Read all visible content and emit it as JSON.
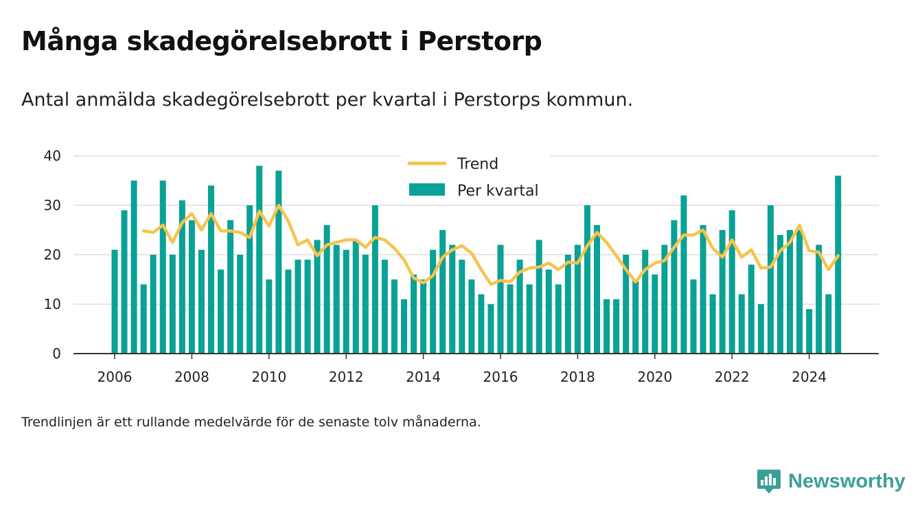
{
  "title": "Många skadegörelsebrott i Perstorp",
  "subtitle": "Antal anmälda skadegörelsebrott per kvartal i Perstorps kommun.",
  "footnote": "Trendlinjen är ett rullande medelvärde för de senaste tolv månaderna.",
  "brand": {
    "name": "Newsworthy",
    "logo_icon": "newsworthy-logo-icon"
  },
  "colors": {
    "bars": "#0aa196",
    "trend": "#f7c34c",
    "grid": "#dddddd",
    "axis": "#333333"
  },
  "chart_data": {
    "type": "bar",
    "grid": true,
    "legend_position": "top-center",
    "y_range": [
      0,
      40
    ],
    "y_ticks": [
      0,
      10,
      20,
      30,
      40
    ],
    "y_tick_labels": [
      "0",
      "10",
      "20",
      "30",
      "40"
    ],
    "x_range": [
      2005.75,
      2025.75
    ],
    "x_ticks": [
      2006,
      2008,
      2010,
      2012,
      2014,
      2016,
      2018,
      2020,
      2022,
      2024
    ],
    "x_tick_labels": [
      "2006",
      "2008",
      "2010",
      "2012",
      "2014",
      "2016",
      "2018",
      "2020",
      "2022",
      "2024"
    ],
    "series": [
      {
        "name": "Per kvartal",
        "kind": "bar",
        "x": [
          2006.0,
          2006.25,
          2006.5,
          2006.75,
          2007.0,
          2007.25,
          2007.5,
          2007.75,
          2008.0,
          2008.25,
          2008.5,
          2008.75,
          2009.0,
          2009.25,
          2009.5,
          2009.75,
          2010.0,
          2010.25,
          2010.5,
          2010.75,
          2011.0,
          2011.25,
          2011.5,
          2011.75,
          2012.0,
          2012.25,
          2012.5,
          2012.75,
          2013.0,
          2013.25,
          2013.5,
          2013.75,
          2014.0,
          2014.25,
          2014.5,
          2014.75,
          2015.0,
          2015.25,
          2015.5,
          2015.75,
          2016.0,
          2016.25,
          2016.5,
          2016.75,
          2017.0,
          2017.25,
          2017.5,
          2017.75,
          2018.0,
          2018.25,
          2018.5,
          2018.75,
          2019.0,
          2019.25,
          2019.5,
          2019.75,
          2020.0,
          2020.25,
          2020.5,
          2020.75,
          2021.0,
          2021.25,
          2021.5,
          2021.75,
          2022.0,
          2022.25,
          2022.5,
          2022.75,
          2023.0,
          2023.25,
          2023.5,
          2023.75,
          2024.0,
          2024.25,
          2024.5,
          2024.75
        ],
        "values": [
          21,
          29,
          35,
          14,
          20,
          35,
          20,
          31,
          27,
          21,
          34,
          17,
          27,
          20,
          30,
          38,
          15,
          37,
          17,
          19,
          19,
          23,
          26,
          22,
          21,
          23,
          20,
          30,
          19,
          15,
          11,
          16,
          15,
          21,
          25,
          22,
          19,
          15,
          12,
          10,
          22,
          14,
          19,
          14,
          23,
          17,
          14,
          20,
          22,
          30,
          26,
          11,
          11,
          20,
          15,
          21,
          16,
          22,
          27,
          32,
          15,
          26,
          12,
          25,
          29,
          12,
          18,
          10,
          30,
          24,
          25,
          25,
          9,
          22,
          12,
          36
        ]
      },
      {
        "name": "Trend",
        "kind": "line",
        "x": [
          2006.75,
          2007.0,
          2007.25,
          2007.5,
          2007.75,
          2008.0,
          2008.25,
          2008.5,
          2008.75,
          2009.0,
          2009.25,
          2009.5,
          2009.75,
          2010.0,
          2010.25,
          2010.5,
          2010.75,
          2011.0,
          2011.25,
          2011.5,
          2011.75,
          2012.0,
          2012.25,
          2012.5,
          2012.75,
          2013.0,
          2013.25,
          2013.5,
          2013.75,
          2014.0,
          2014.25,
          2014.5,
          2014.75,
          2015.0,
          2015.25,
          2015.5,
          2015.75,
          2016.0,
          2016.25,
          2016.5,
          2016.75,
          2017.0,
          2017.25,
          2017.5,
          2017.75,
          2018.0,
          2018.25,
          2018.5,
          2018.75,
          2019.0,
          2019.25,
          2019.5,
          2019.75,
          2020.0,
          2020.25,
          2020.5,
          2020.75,
          2021.0,
          2021.25,
          2021.5,
          2021.75,
          2022.0,
          2022.25,
          2022.5,
          2022.75,
          2023.0,
          2023.25,
          2023.5,
          2023.75,
          2024.0,
          2024.25,
          2024.5,
          2024.75
        ],
        "values": [
          24.8,
          24.5,
          26.0,
          22.5,
          26.5,
          28.3,
          25.0,
          28.3,
          24.8,
          24.8,
          24.5,
          23.5,
          28.8,
          25.8,
          30.0,
          26.8,
          22.0,
          23.0,
          19.8,
          22.0,
          22.5,
          23.0,
          23.0,
          21.5,
          23.5,
          23.0,
          21.3,
          19.0,
          15.3,
          14.3,
          15.8,
          19.5,
          21.0,
          21.8,
          20.3,
          17.0,
          14.0,
          14.8,
          14.5,
          16.5,
          17.3,
          17.5,
          18.3,
          17.0,
          18.5,
          18.3,
          21.8,
          24.5,
          22.5,
          19.8,
          17.0,
          14.5,
          17.0,
          18.3,
          18.8,
          21.5,
          24.0,
          24.0,
          25.0,
          21.3,
          19.5,
          23.0,
          19.5,
          21.0,
          17.3,
          17.5,
          20.8,
          22.5,
          26.0,
          20.8,
          20.5,
          17.0,
          19.8
        ]
      }
    ]
  }
}
